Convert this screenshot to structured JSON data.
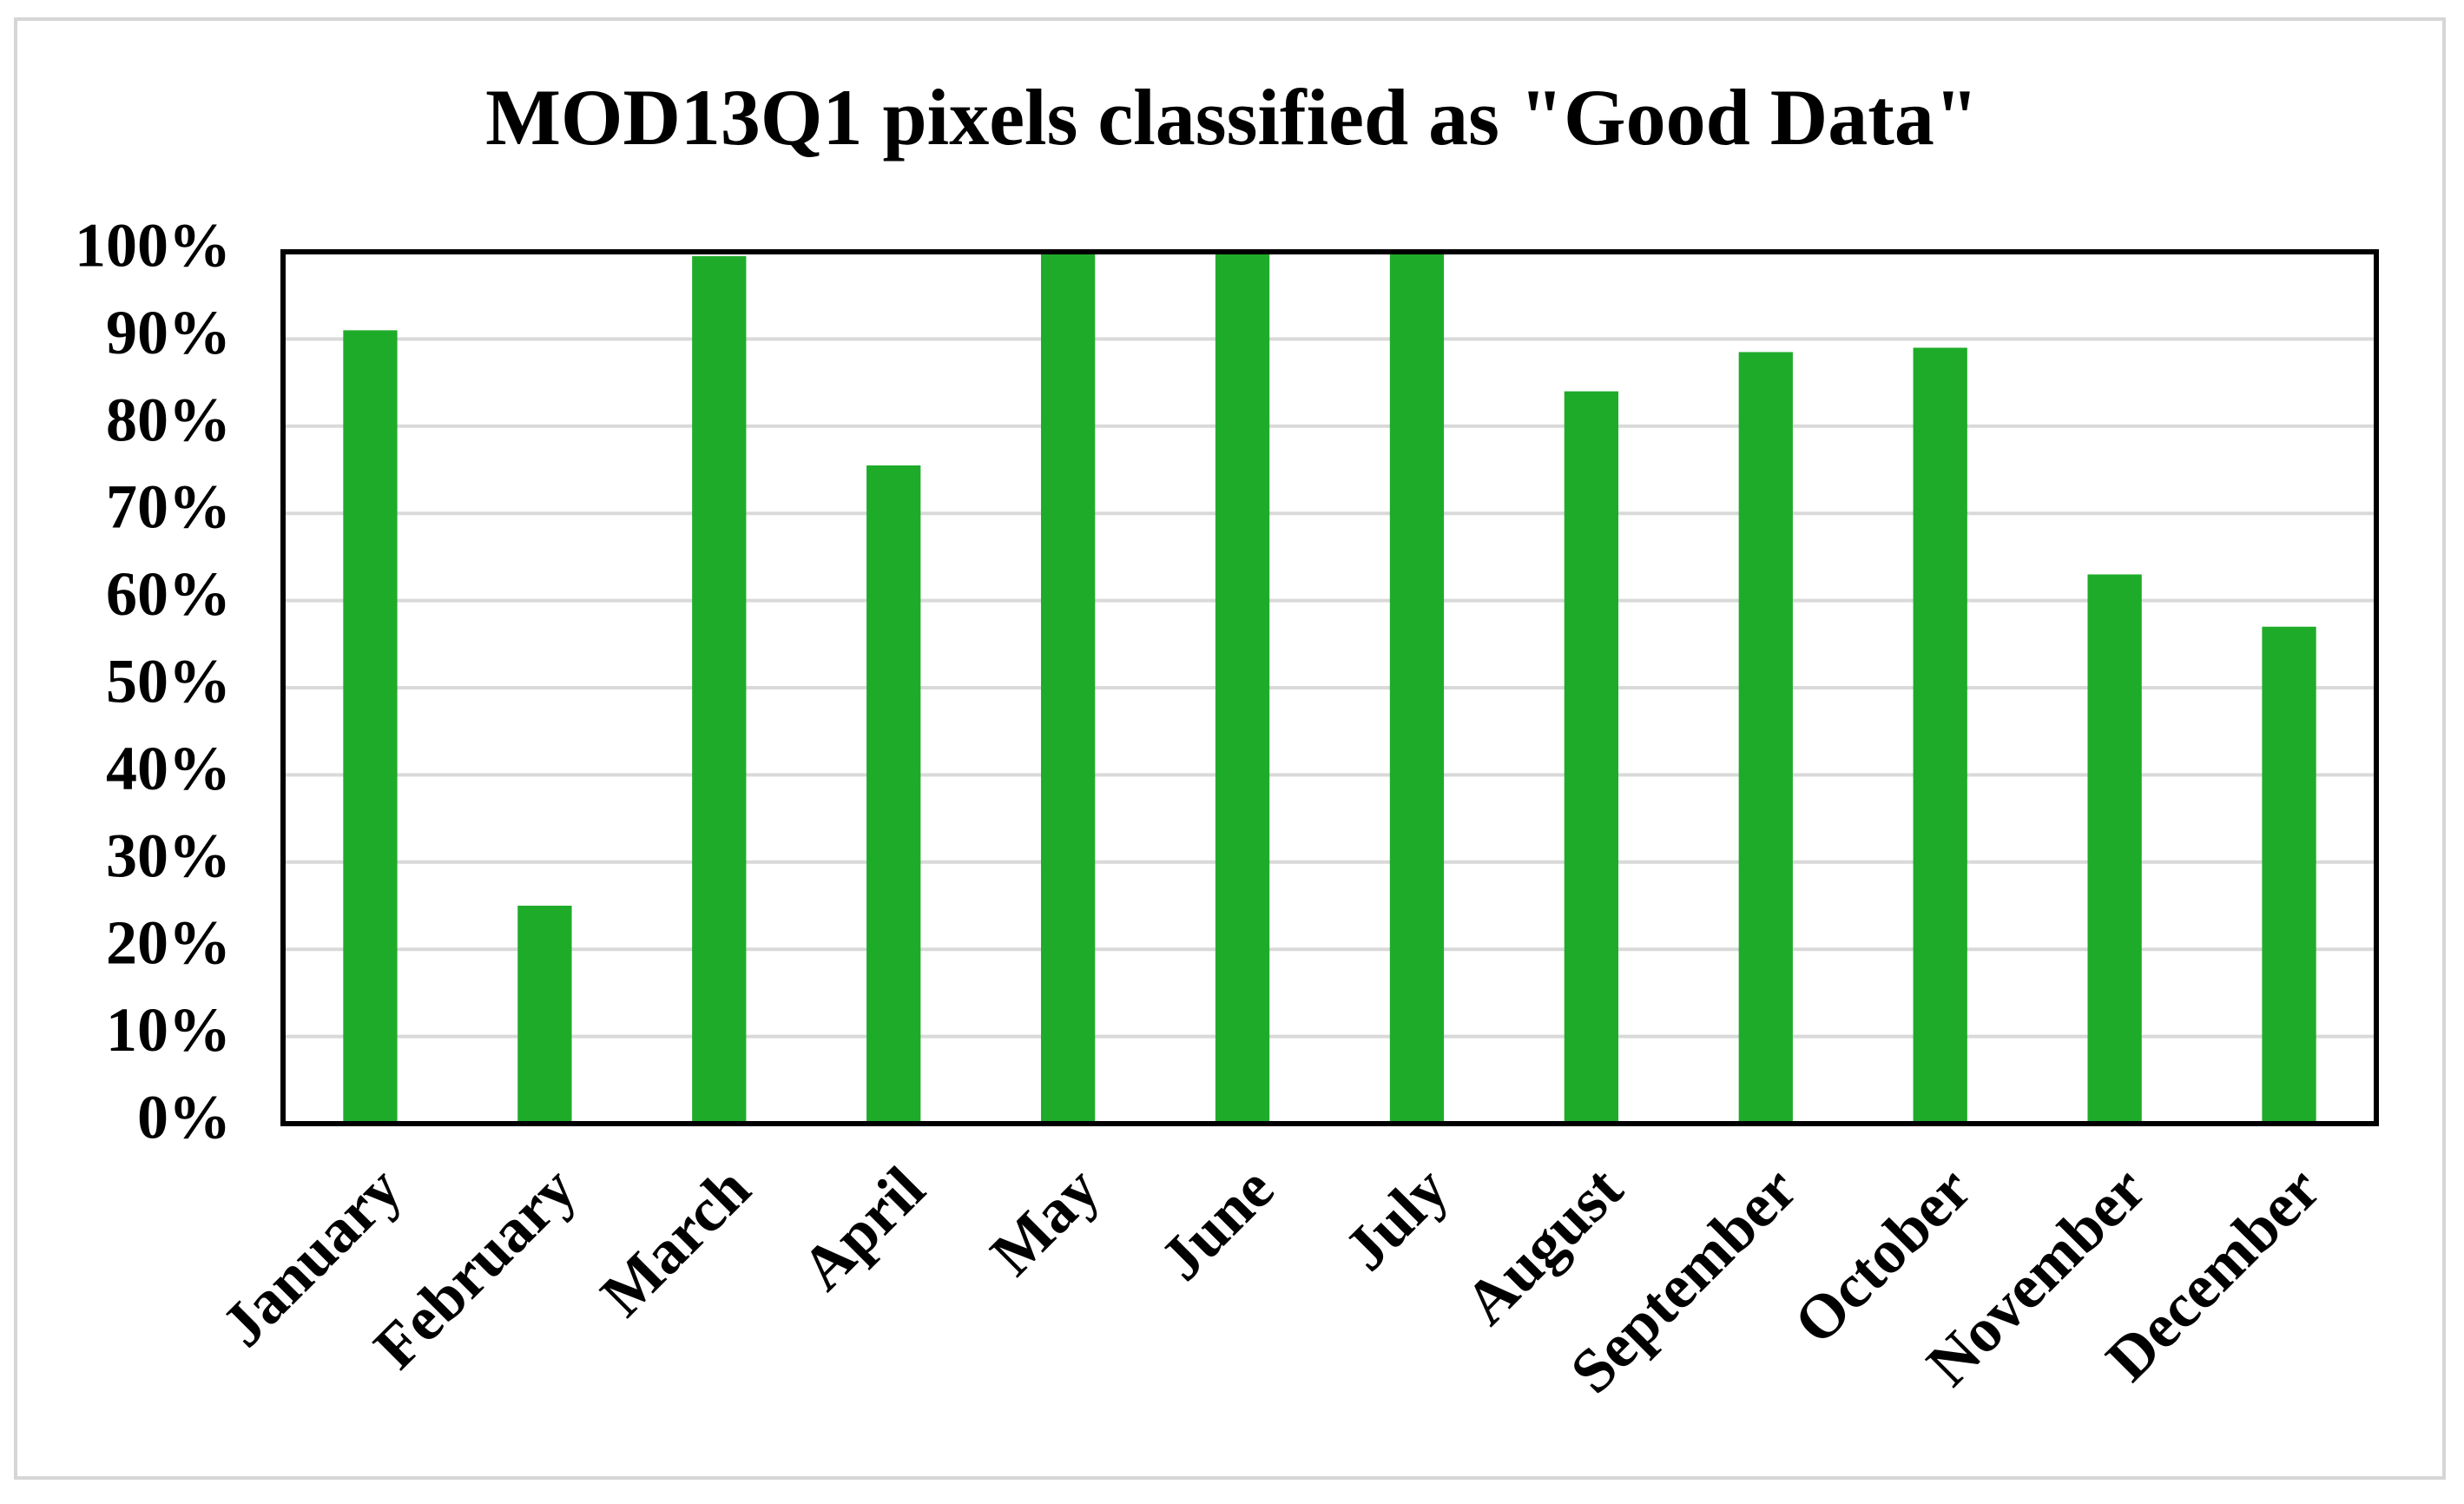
{
  "chart_data": {
    "type": "bar",
    "title": "MOD13Q1 pixels classified as \"Good Data\"",
    "categories": [
      "January",
      "February",
      "March",
      "April",
      "May",
      "June",
      "July",
      "August",
      "September",
      "October",
      "November",
      "December"
    ],
    "values": [
      91,
      25,
      99.5,
      75.5,
      100,
      100,
      100,
      84,
      88.5,
      89,
      63,
      57
    ],
    "color": "#1fab2a",
    "ylim": [
      0,
      100
    ],
    "yticks": [
      {
        "value": 0,
        "label": "0%"
      },
      {
        "value": 10,
        "label": "10%"
      },
      {
        "value": 20,
        "label": "20%"
      },
      {
        "value": 30,
        "label": "30%"
      },
      {
        "value": 40,
        "label": "40%"
      },
      {
        "value": 50,
        "label": "50%"
      },
      {
        "value": 60,
        "label": "60%"
      },
      {
        "value": 70,
        "label": "70%"
      },
      {
        "value": 80,
        "label": "80%"
      },
      {
        "value": 90,
        "label": "90%"
      },
      {
        "value": 100,
        "label": "100%"
      }
    ],
    "grid": true
  }
}
